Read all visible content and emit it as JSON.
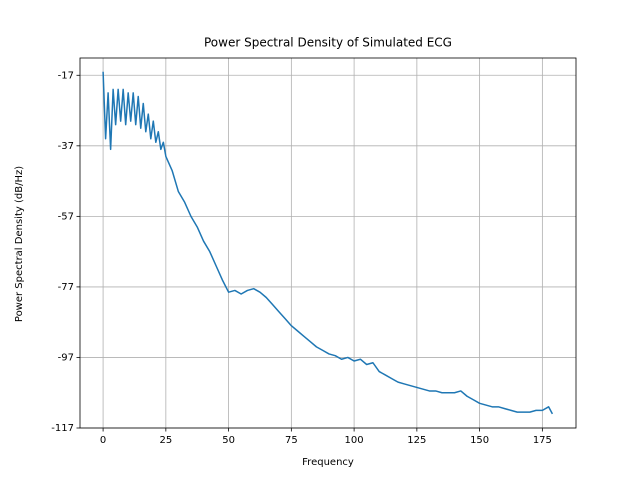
{
  "chart_data": {
    "type": "line",
    "title": "Power Spectral Density of Simulated ECG",
    "x_label": "Frequency",
    "y_label": "Power Spectral Density (dB/Hz)",
    "x": [
      0,
      1,
      2,
      3,
      4,
      5,
      6,
      7,
      8,
      9,
      10,
      11,
      12,
      13,
      14,
      15,
      16,
      17,
      18,
      19,
      20,
      21,
      22,
      23,
      24,
      25,
      27.5,
      30,
      32.5,
      35,
      37.5,
      40,
      42.5,
      45,
      47.5,
      50,
      52.5,
      55,
      57.5,
      60,
      62.5,
      65,
      67.5,
      70,
      72.5,
      75,
      77.5,
      80,
      82.5,
      85,
      87.5,
      90,
      92.5,
      95,
      97.5,
      100,
      102.5,
      105,
      107.5,
      110,
      112.5,
      115,
      117.5,
      120,
      122.5,
      125,
      127.5,
      130,
      132.5,
      135,
      137.5,
      140,
      142.5,
      145,
      147.5,
      150,
      152.5,
      155,
      157.5,
      160,
      162.5,
      165,
      167.5,
      170,
      172.5,
      175,
      177.5,
      179
    ],
    "series": [
      {
        "color": "#1f77b4",
        "values": [
          -16,
          -35,
          -22,
          -38,
          -21,
          -31,
          -21,
          -30,
          -21,
          -31,
          -22,
          -30,
          -22,
          -31,
          -23,
          -32,
          -25,
          -33,
          -28,
          -35,
          -30,
          -36,
          -33,
          -38,
          -36,
          -40,
          -44,
          -50,
          -53,
          -57,
          -60,
          -64,
          -67,
          -71,
          -75,
          -78.5,
          -78,
          -79,
          -78,
          -77.5,
          -78.5,
          -80,
          -82,
          -84,
          -86,
          -88,
          -89.5,
          -91,
          -92.5,
          -94,
          -95,
          -96,
          -96.5,
          -97.5,
          -97,
          -98,
          -97.5,
          -99,
          -98.5,
          -101,
          -102,
          -103,
          -104,
          -104.5,
          -105,
          -105.5,
          -106,
          -106.5,
          -106.5,
          -107,
          -107,
          -107,
          -106.5,
          -108,
          -109,
          -110,
          -110.5,
          -111,
          -111,
          -111.5,
          -112,
          -112.5,
          -112.5,
          -112.5,
          -112,
          -112,
          -111,
          -113
        ]
      }
    ],
    "xlim": [
      -9.2,
      188.4
    ],
    "xticks": [
      0,
      25,
      50,
      75,
      100,
      125,
      150,
      175
    ],
    "ylim": [
      -117,
      -12.1
    ],
    "yticks": [
      -117,
      -97,
      -77,
      -57,
      -37,
      -17
    ],
    "grid": true
  }
}
